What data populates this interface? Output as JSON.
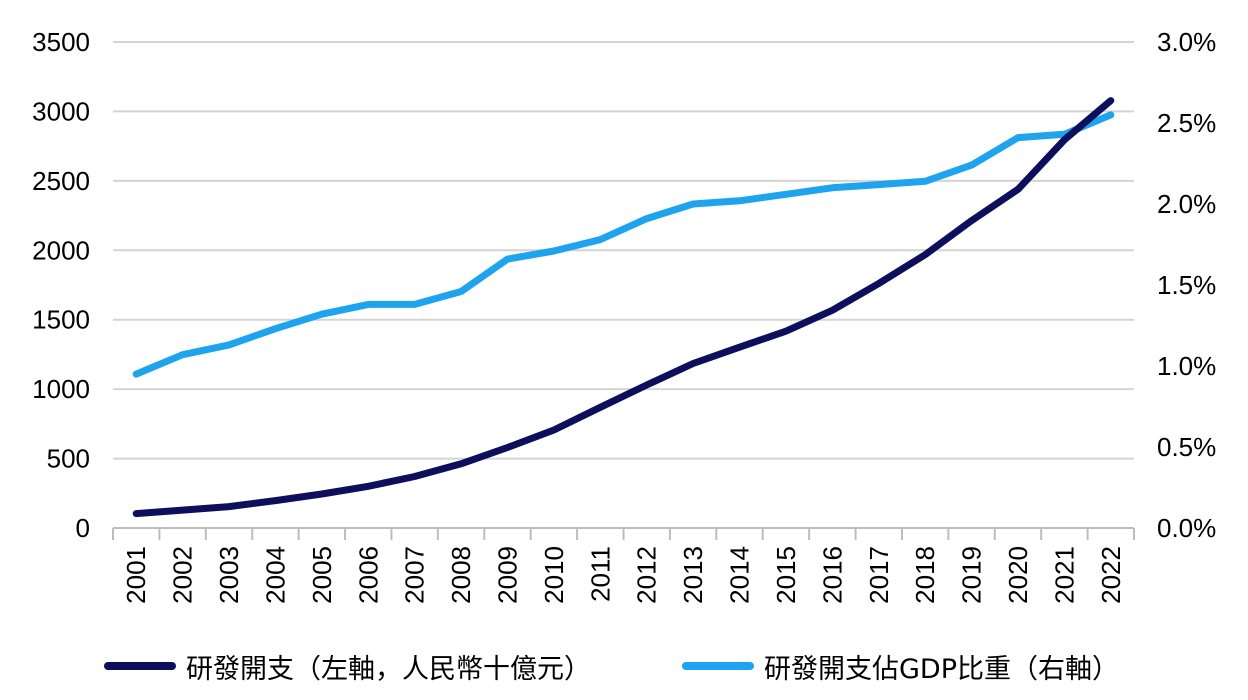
{
  "chart_data": {
    "type": "line",
    "x": [
      "2001",
      "2002",
      "2003",
      "2004",
      "2005",
      "2006",
      "2007",
      "2008",
      "2009",
      "2010",
      "2011",
      "2012",
      "2013",
      "2014",
      "2015",
      "2016",
      "2017",
      "2018",
      "2019",
      "2020",
      "2021",
      "2022"
    ],
    "series": [
      {
        "name": "研發開支（左軸，人民幣十億元）",
        "axis": "left",
        "color": "#0d0f5c",
        "values": [
          104,
          129,
          154,
          197,
          245,
          300,
          371,
          462,
          580,
          706,
          869,
          1030,
          1185,
          1302,
          1417,
          1568,
          1761,
          1968,
          2214,
          2439,
          2796,
          3078
        ]
      },
      {
        "name": "研發開支佔GDP比重（右軸）",
        "axis": "right",
        "color": "#1ea3ef",
        "values": [
          0.95,
          1.07,
          1.13,
          1.23,
          1.32,
          1.38,
          1.38,
          1.46,
          1.66,
          1.71,
          1.78,
          1.91,
          2.0,
          2.02,
          2.06,
          2.1,
          2.12,
          2.14,
          2.24,
          2.41,
          2.43,
          2.55
        ]
      }
    ],
    "y_left": {
      "min": 0,
      "max": 3500,
      "step": 500,
      "ticks": [
        "0",
        "500",
        "1000",
        "1500",
        "2000",
        "2500",
        "3000",
        "3500"
      ]
    },
    "y_right": {
      "min": 0,
      "max": 3.0,
      "step": 0.5,
      "ticks": [
        "0.0%",
        "0.5%",
        "1.0%",
        "1.5%",
        "2.0%",
        "2.5%",
        "3.0%"
      ]
    },
    "grid": true,
    "legend_position": "bottom"
  }
}
